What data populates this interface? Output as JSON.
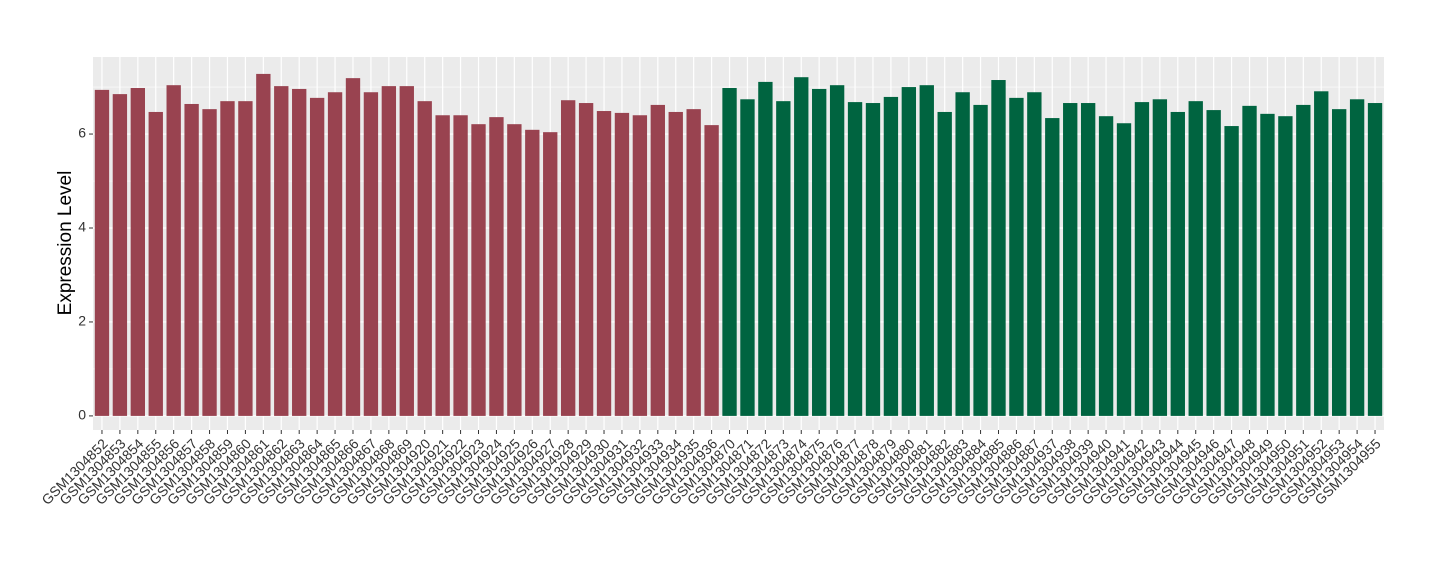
{
  "chart_data": {
    "type": "bar",
    "y_label": "Expression Level",
    "categories": [
      "GSM1304852",
      "GSM1304853",
      "GSM1304854",
      "GSM1304855",
      "GSM1304856",
      "GSM1304857",
      "GSM1304858",
      "GSM1304859",
      "GSM1304860",
      "GSM1304861",
      "GSM1304862",
      "GSM1304863",
      "GSM1304864",
      "GSM1304865",
      "GSM1304866",
      "GSM1304867",
      "GSM1304868",
      "GSM1304869",
      "GSM1304920",
      "GSM1304921",
      "GSM1304922",
      "GSM1304923",
      "GSM1304924",
      "GSM1304925",
      "GSM1304926",
      "GSM1304927",
      "GSM1304928",
      "GSM1304929",
      "GSM1304930",
      "GSM1304931",
      "GSM1304932",
      "GSM1304933",
      "GSM1304934",
      "GSM1304935",
      "GSM1304936",
      "GSM1304870",
      "GSM1304871",
      "GSM1304872",
      "GSM1304873",
      "GSM1304874",
      "GSM1304875",
      "GSM1304876",
      "GSM1304877",
      "GSM1304878",
      "GSM1304879",
      "GSM1304880",
      "GSM1304881",
      "GSM1304882",
      "GSM1304883",
      "GSM1304884",
      "GSM1304885",
      "GSM1304886",
      "GSM1304887",
      "GSM1304937",
      "GSM1304938",
      "GSM1304939",
      "GSM1304940",
      "GSM1304941",
      "GSM1304942",
      "GSM1304943",
      "GSM1304944",
      "GSM1304945",
      "GSM1304946",
      "GSM1304947",
      "GSM1304948",
      "GSM1304949",
      "GSM1304950",
      "GSM1304951",
      "GSM1304952",
      "GSM1304953",
      "GSM1304954",
      "GSM1304955"
    ],
    "values": [
      6.94,
      6.85,
      6.98,
      6.47,
      7.04,
      6.64,
      6.53,
      6.7,
      6.7,
      7.28,
      7.02,
      6.96,
      6.77,
      6.89,
      7.19,
      6.89,
      7.02,
      7.02,
      6.7,
      6.4,
      6.4,
      6.21,
      6.36,
      6.21,
      6.09,
      6.04,
      6.72,
      6.66,
      6.49,
      6.45,
      6.4,
      6.62,
      6.47,
      6.53,
      6.19,
      6.98,
      6.74,
      7.11,
      6.7,
      7.21,
      6.96,
      7.04,
      6.68,
      6.66,
      6.79,
      7.0,
      7.04,
      6.47,
      6.89,
      6.62,
      7.15,
      6.77,
      6.89,
      6.34,
      6.66,
      6.66,
      6.38,
      6.23,
      6.68,
      6.74,
      6.47,
      6.7,
      6.51,
      6.17,
      6.6,
      6.43,
      6.38,
      6.62,
      6.91,
      6.53,
      6.74,
      6.66
    ],
    "colors": [
      "#994350",
      "#994350",
      "#994350",
      "#994350",
      "#994350",
      "#994350",
      "#994350",
      "#994350",
      "#994350",
      "#994350",
      "#994350",
      "#994350",
      "#994350",
      "#994350",
      "#994350",
      "#994350",
      "#994350",
      "#994350",
      "#994350",
      "#994350",
      "#994350",
      "#994350",
      "#994350",
      "#994350",
      "#994350",
      "#994350",
      "#994350",
      "#994350",
      "#994350",
      "#994350",
      "#994350",
      "#994350",
      "#994350",
      "#994350",
      "#994350",
      "#006440",
      "#006440",
      "#006440",
      "#006440",
      "#006440",
      "#006440",
      "#006440",
      "#006440",
      "#006440",
      "#006440",
      "#006440",
      "#006440",
      "#006440",
      "#006440",
      "#006440",
      "#006440",
      "#006440",
      "#006440",
      "#006440",
      "#006440",
      "#006440",
      "#006440",
      "#006440",
      "#006440",
      "#006440",
      "#006440",
      "#006440",
      "#006440",
      "#006440",
      "#006440",
      "#006440",
      "#006440",
      "#006440",
      "#006440",
      "#006440",
      "#006440",
      "#006440"
    ],
    "ylim": [
      -0.3,
      7.64
    ],
    "yticks": [
      0,
      2,
      4,
      6
    ],
    "y_minor_ticks": [
      1,
      3,
      5,
      7
    ],
    "grid": true
  }
}
